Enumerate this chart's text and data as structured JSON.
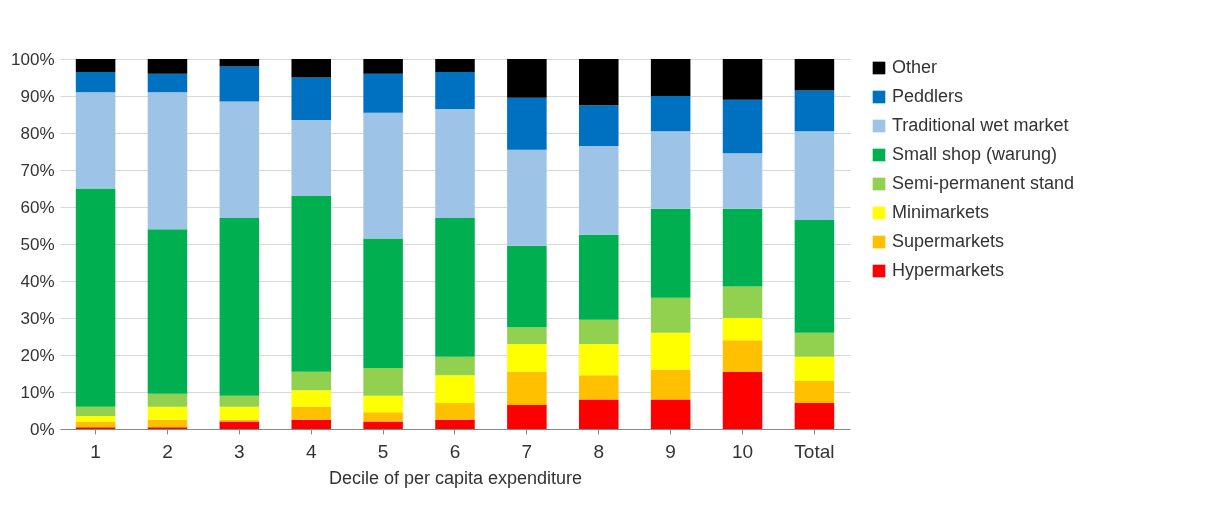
{
  "chart_data": {
    "type": "bar",
    "stacked": true,
    "xlabel": "Decile of per capita expenditure",
    "categories": [
      "1",
      "2",
      "3",
      "4",
      "5",
      "6",
      "7",
      "8",
      "9",
      "10",
      "Total"
    ],
    "series": [
      {
        "name": "Hypermarkets",
        "color": "#ff0000",
        "values": [
          0.5,
          0.5,
          2,
          2.5,
          2,
          2.5,
          6.5,
          8,
          8,
          15.5,
          7
        ]
      },
      {
        "name": "Supermarkets",
        "color": "#ffc000",
        "values": [
          1.5,
          2,
          0.5,
          3.5,
          2.5,
          4.5,
          9,
          6.5,
          8,
          8.5,
          6
        ]
      },
      {
        "name": "Minimarkets",
        "color": "#ffff00",
        "values": [
          1.5,
          3.5,
          3.5,
          4.5,
          4.5,
          7.5,
          7.5,
          8.5,
          10,
          6,
          6.5
        ]
      },
      {
        "name": "Semi-permanent stand",
        "color": "#92d050",
        "values": [
          2.5,
          3.5,
          3,
          5,
          7.5,
          5,
          4.5,
          6.5,
          9.5,
          8.5,
          6.5
        ]
      },
      {
        "name": "Small shop (warung)",
        "color": "#00b050",
        "values": [
          59,
          44.5,
          48,
          47.5,
          35,
          37.5,
          22,
          23,
          24,
          21,
          30.5
        ]
      },
      {
        "name": "Traditional wet market",
        "color": "#9dc3e6",
        "values": [
          26,
          37,
          31.5,
          20.5,
          34,
          29.5,
          26,
          24,
          21,
          15,
          24
        ]
      },
      {
        "name": "Peddlers",
        "color": "#0070c0",
        "values": [
          5.5,
          5,
          9.5,
          11.5,
          10.5,
          10,
          14,
          11,
          9.5,
          14.5,
          11
        ]
      },
      {
        "name": "Other",
        "color": "#000000",
        "values": [
          3.5,
          4,
          2,
          5,
          4,
          3.5,
          10.5,
          12.5,
          10,
          11,
          8.5
        ]
      }
    ],
    "ylim": [
      0,
      100
    ],
    "yticks": [
      {
        "value": 0,
        "label": "0%"
      },
      {
        "value": 10,
        "label": "10%"
      },
      {
        "value": 20,
        "label": "20%"
      },
      {
        "value": 30,
        "label": "30%"
      },
      {
        "value": 40,
        "label": "40%"
      },
      {
        "value": 50,
        "label": "50%"
      },
      {
        "value": 60,
        "label": "60%"
      },
      {
        "value": 70,
        "label": "70%"
      },
      {
        "value": 80,
        "label": "80%"
      },
      {
        "value": 90,
        "label": "90%"
      },
      {
        "value": 100,
        "label": "100%"
      }
    ],
    "grid": "y",
    "legend": "right"
  }
}
